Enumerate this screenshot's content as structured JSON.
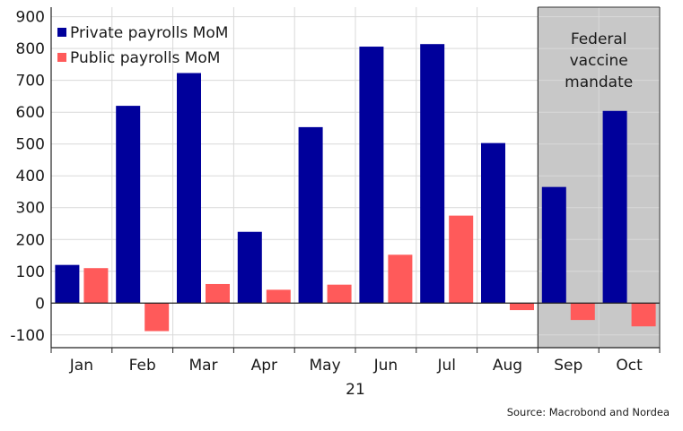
{
  "chart_data": {
    "type": "bar",
    "categories": [
      "Jan",
      "Feb",
      "Mar",
      "Apr",
      "May",
      "Jun",
      "Jul",
      "Aug",
      "Sep",
      "Oct"
    ],
    "xlabel": "21",
    "series": [
      {
        "name": "Private payrolls MoM",
        "color": "#00009b",
        "values": [
          120,
          620,
          723,
          224,
          553,
          806,
          814,
          503,
          365,
          604
        ]
      },
      {
        "name": "Public payrolls MoM",
        "color": "#ff5a5a",
        "values": [
          110,
          -88,
          60,
          42,
          58,
          152,
          275,
          -22,
          -53,
          -73
        ]
      }
    ],
    "ylim": [
      -140,
      930
    ],
    "yticks": [
      900,
      800,
      700,
      600,
      500,
      400,
      300,
      200,
      100,
      0,
      -100
    ],
    "grid": true,
    "legend": "top-left",
    "shaded_region": {
      "from_category": "Sep",
      "to_category": "Oct",
      "label_lines": [
        "Federal",
        "vaccine",
        "mandate"
      ],
      "color": "#c8c8c8"
    },
    "source": "Source: Macrobond and Nordea"
  }
}
